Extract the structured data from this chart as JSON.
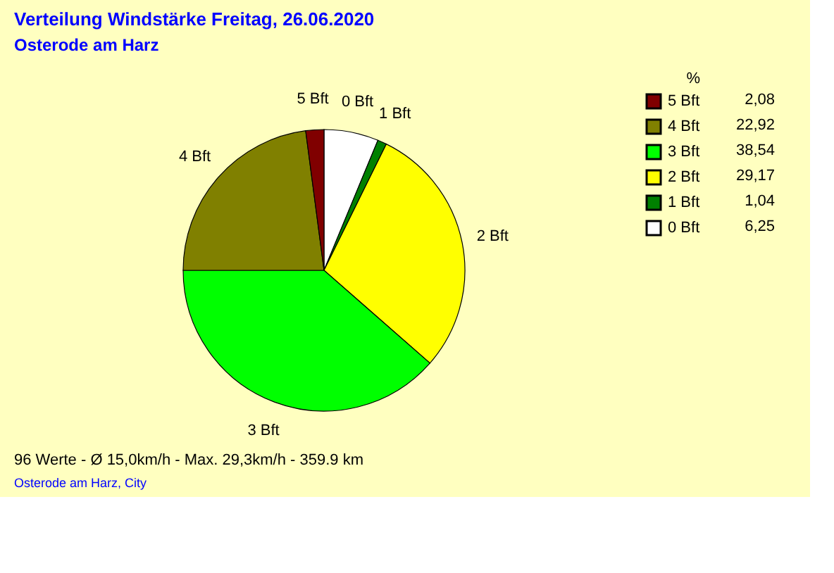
{
  "chart_data": {
    "type": "pie",
    "title": "Verteilung Windstärke  Freitag, 26.06.2020",
    "subtitle": "Osterode am Harz",
    "categories": [
      "0 Bft",
      "1 Bft",
      "2 Bft",
      "3 Bft",
      "4 Bft",
      "5 Bft"
    ],
    "values": [
      6.25,
      1.04,
      29.17,
      38.54,
      22.92,
      2.08
    ],
    "colors": [
      "#ffffff",
      "#008000",
      "#ffff00",
      "#00ff00",
      "#808000",
      "#800000"
    ],
    "value_labels": [
      "6,25",
      "1,04",
      "29,17",
      "38,54",
      "22,92",
      "2,08"
    ],
    "legend_title": "%",
    "legend": "top right",
    "annotations": [
      "96 Werte   -   Ø 15,0km/h   -   Max. 29,3km/h   -   359.9 km",
      "Osterode am Harz, City"
    ]
  }
}
